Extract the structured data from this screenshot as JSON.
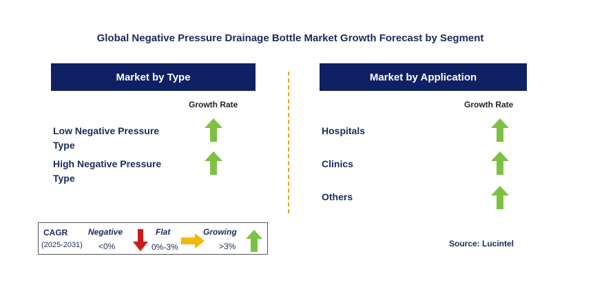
{
  "title": "Global Negative Pressure Drainage Bottle Market Growth Forecast by Segment",
  "left_panel": {
    "header": "Market by Type",
    "growth_rate_label": "Growth Rate",
    "segments": [
      {
        "line1": "Low Negative Pressure",
        "line2": "Type",
        "trend": "growing"
      },
      {
        "line1": "High Negative Pressure",
        "line2": "Type",
        "trend": "growing"
      }
    ]
  },
  "right_panel": {
    "header": "Market by Application",
    "growth_rate_label": "Growth Rate",
    "segments": [
      {
        "label": "Hospitals",
        "trend": "growing"
      },
      {
        "label": "Clinics",
        "trend": "growing"
      },
      {
        "label": "Others",
        "trend": "growing"
      }
    ]
  },
  "legend": {
    "cagr_label": "CAGR",
    "period": "(2025-2031)",
    "negative": {
      "label": "Negative",
      "range": "<0%",
      "icon": "down-arrow-icon",
      "color": "#cc1a1a"
    },
    "flat": {
      "label": "Flat",
      "range": "0%-3%",
      "icon": "right-arrow-icon",
      "color": "#f5b800"
    },
    "growing": {
      "label": "Growing",
      "range": ">3%",
      "icon": "up-arrow-icon",
      "color": "#7dc142"
    }
  },
  "source": "Source: Lucintel",
  "colors": {
    "header_bg": "#0f2063",
    "title_text": "#1b2a5a",
    "divider": "#f0a020",
    "up_arrow": "#7dc142"
  }
}
